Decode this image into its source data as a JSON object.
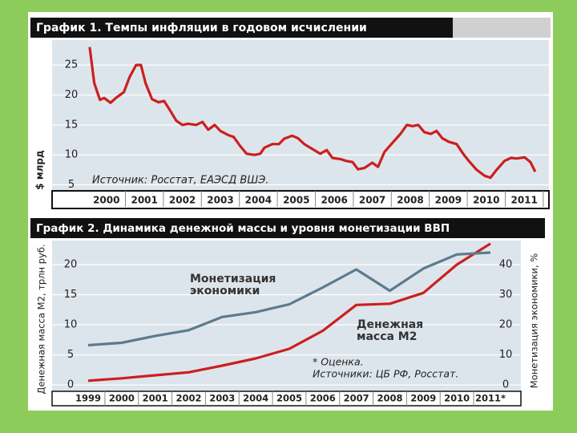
{
  "chart_data": [
    {
      "type": "line",
      "title": "График 1. Темпы инфляции в годовом исчислении",
      "y_label": "$ млрд",
      "annotation": "Источник: Росстат, ЕАЭСД ВШЭ.",
      "color": "#cc1f1f",
      "x": [
        1999.56,
        1999.68,
        1999.83,
        1999.94,
        2000.11,
        2000.25,
        2000.46,
        2000.61,
        2000.78,
        2000.91,
        2001.03,
        2001.2,
        2001.37,
        2001.52,
        2001.67,
        2001.84,
        2002.0,
        2002.15,
        2002.36,
        2002.53,
        2002.68,
        2002.85,
        2003.0,
        2003.21,
        2003.35,
        2003.52,
        2003.69,
        2003.9,
        2004.05,
        2004.16,
        2004.37,
        2004.54,
        2004.68,
        2004.89,
        2005.04,
        2005.21,
        2005.42,
        2005.63,
        2005.8,
        2005.95,
        2006.16,
        2006.31,
        2006.48,
        2006.62,
        2006.79,
        2007.0,
        2007.15,
        2007.32,
        2007.53,
        2007.74,
        2007.91,
        2008.06,
        2008.21,
        2008.37,
        2008.54,
        2008.69,
        2008.84,
        2009.01,
        2009.22,
        2009.39,
        2009.54,
        2009.75,
        2009.96,
        2010.11,
        2010.27,
        2010.48,
        2010.65,
        2010.8,
        2011.01,
        2011.16,
        2011.29
      ],
      "values": [
        28,
        22,
        19.2,
        19.5,
        18.7,
        19.5,
        20.5,
        23,
        25,
        25,
        22,
        19.3,
        18.8,
        19,
        17.5,
        15.7,
        15,
        15.2,
        15,
        15.5,
        14.2,
        15,
        14,
        13.3,
        13,
        11.5,
        10.2,
        10,
        10.2,
        11.2,
        11.8,
        11.8,
        12.7,
        13.2,
        12.8,
        11.8,
        11,
        10.2,
        10.8,
        9.5,
        9.3,
        9,
        8.8,
        7.6,
        7.8,
        8.7,
        8,
        10.5,
        12,
        13.5,
        15,
        14.8,
        15,
        13.8,
        13.5,
        14,
        12.8,
        12.2,
        11.8,
        10.2,
        9,
        7.5,
        6.5,
        6.2,
        7.5,
        9,
        9.5,
        9.4,
        9.6,
        8.8,
        7.2
      ],
      "xlim": [
        1998.57,
        2011.65
      ],
      "xticks": [
        2000,
        2001,
        2002,
        2003,
        2004,
        2005,
        2006,
        2007,
        2008,
        2009,
        2010,
        2011
      ],
      "ylim": [
        4,
        28.5
      ],
      "yticks": [
        5,
        10,
        15,
        20,
        25
      ],
      "grid": true
    },
    {
      "type": "line",
      "title": "График 2. Динамика денежной массы и уровня монетизации ВВП",
      "y_label": "Денежная масса М2, трлн руб.",
      "y2_label": "Монетизация экономики, %",
      "categories": [
        "1999",
        "2000",
        "2001",
        "2002",
        "2003",
        "2004",
        "2005",
        "2006",
        "2007",
        "2008",
        "2009",
        "2010",
        "2011*"
      ],
      "series": [
        {
          "label_lines": [
            "Денежная",
            "масса М2"
          ],
          "color": "#cc1f1f",
          "values": [
            0.7,
            1.1,
            1.6,
            2.1,
            3.2,
            4.4,
            6.0,
            9.0,
            13.3,
            13.5,
            15.3,
            20.0,
            23.5
          ]
        },
        {
          "label_lines": [
            "Монетизация",
            "экономики"
          ],
          "color": "#5d7b8c",
          "axis": "y2",
          "values": [
            13.2,
            14,
            16.3,
            18.2,
            22.6,
            24.2,
            26.8,
            32.4,
            38.4,
            31.3,
            38.7,
            43.4,
            44
          ]
        }
      ],
      "notes": [
        "* Оценка.",
        "Источники: ЦБ РФ, Росстат."
      ],
      "ylim": [
        -0.66,
        24
      ],
      "yticks": [
        0,
        5,
        10,
        15,
        20
      ],
      "y2lim": [
        -1.32,
        48
      ],
      "y2ticks": [
        0,
        10,
        20,
        30,
        40
      ],
      "grid": true
    }
  ]
}
